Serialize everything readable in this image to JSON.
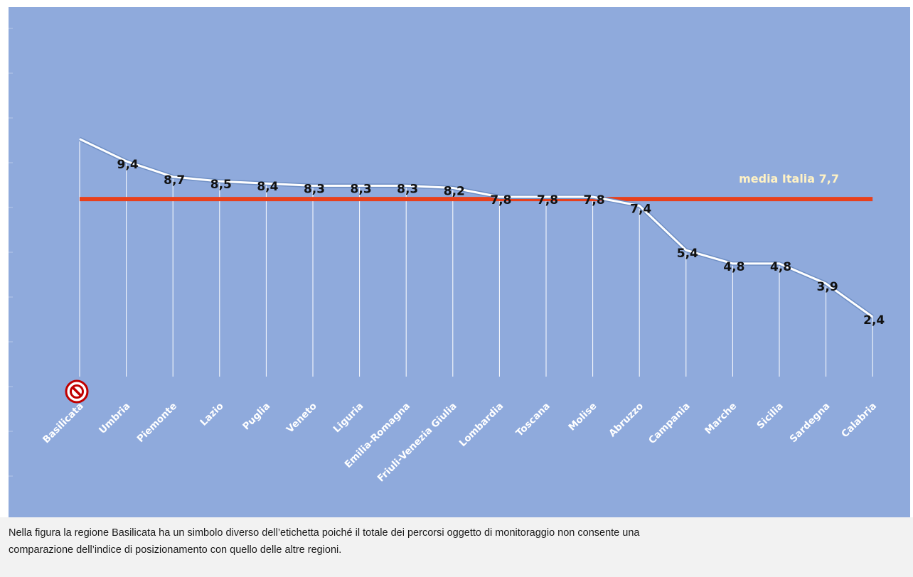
{
  "chart_data": {
    "type": "line",
    "categories": [
      "Basilicata",
      "Umbria",
      "Piemonte",
      "Lazio",
      "Puglia",
      "Veneto",
      "Liguria",
      "Emilia-Romagna",
      "Friuli-Venezia Giulia",
      "Lombardia",
      "Toscana",
      "Molise",
      "Abruzzo",
      "Campania",
      "Marche",
      "Sicilia",
      "Sardegna",
      "Calabria"
    ],
    "values": [
      10.4,
      9.4,
      8.7,
      8.5,
      8.4,
      8.3,
      8.3,
      8.3,
      8.2,
      7.8,
      7.8,
      7.8,
      7.4,
      5.4,
      4.8,
      4.8,
      3.9,
      2.4
    ],
    "data_labels": [
      "",
      "9,4",
      "8,7",
      "8,5",
      "8,4",
      "8,3",
      "8,3",
      "8,3",
      "8,2",
      "7,8",
      "7,8",
      "7,8",
      "7,4",
      "5,4",
      "4,8",
      "4,8",
      "3,9",
      "2,4"
    ],
    "reference_line": {
      "label": "media Italia 7,7",
      "value": 7.7
    },
    "special_marker": {
      "category": "Basilicata",
      "icon": "prohibited-icon"
    },
    "grid": false,
    "colors": {
      "background": "#8faadc",
      "line": "#ffffff",
      "reference_line": "#e8401c",
      "reference_label": "#fff2c4",
      "category_labels": "#ffffff",
      "data_labels": "#111111",
      "marker": "#c00000"
    }
  },
  "caption": {
    "line1": "Nella figura  la regione Basilicata ha un simbolo diverso dell’etichetta poiché il totale dei percorsi oggetto di monitoraggio non consente una",
    "line2": "comparazione dell’indice di posizionamento con quello delle altre regioni."
  }
}
